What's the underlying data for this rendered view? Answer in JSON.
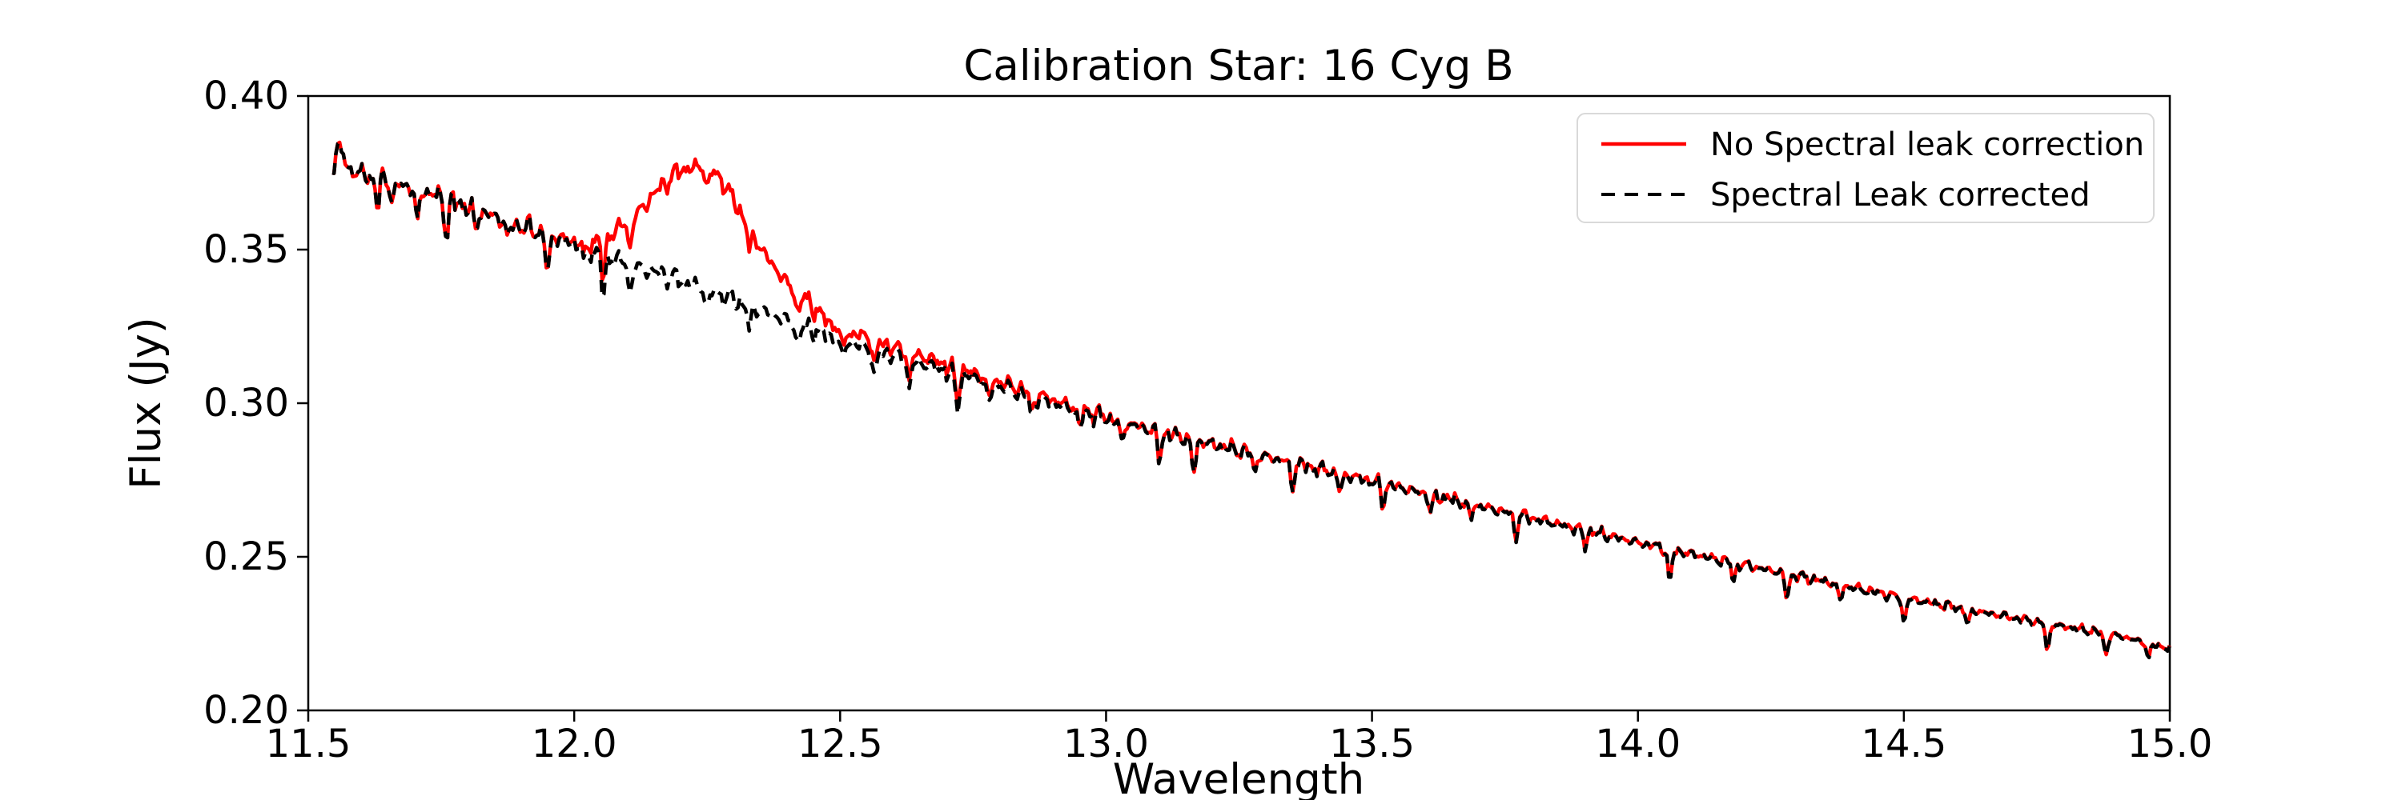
{
  "figure": {
    "title": "Calibration Star: 16 Cyg B",
    "background": "#ffffff"
  },
  "chart_data": {
    "type": "line",
    "title": "Calibration Star: 16 Cyg B",
    "xlabel": "Wavelength",
    "ylabel": "Flux (Jy)",
    "xlim": [
      11.5,
      15.0
    ],
    "ylim": [
      0.2,
      0.4
    ],
    "xticks": [
      "11.5",
      "12.0",
      "12.5",
      "13.0",
      "13.5",
      "14.0",
      "14.5",
      "15.0"
    ],
    "yticks": [
      "0.20",
      "0.25",
      "0.30",
      "0.35",
      "0.40"
    ],
    "grid": false,
    "legend_position": "upper right",
    "axis_color": "#000000",
    "legend_border_color": "#d9d9d9",
    "series": [
      {
        "name": "No Spectral leak correction",
        "color": "#ff0000",
        "style": "solid",
        "x": [
          11.545,
          11.557,
          11.575,
          11.62,
          11.7,
          11.8,
          11.9,
          12.0,
          12.04,
          12.08,
          12.12,
          12.16,
          12.2,
          12.24,
          12.27,
          12.3,
          12.33,
          12.36,
          12.4,
          12.44,
          12.48,
          12.52,
          12.56,
          12.6,
          12.65,
          12.7,
          12.8,
          12.9,
          13.0,
          13.1,
          13.2,
          13.3,
          13.4,
          13.5,
          13.6,
          13.7,
          13.8,
          13.9,
          14.0,
          14.1,
          14.2,
          14.3,
          14.4,
          14.5,
          14.6,
          14.7,
          14.8,
          14.9,
          15.0
        ],
        "y": [
          0.3765,
          0.3845,
          0.376,
          0.3735,
          0.37,
          0.364,
          0.3575,
          0.3525,
          0.353,
          0.3565,
          0.362,
          0.37,
          0.376,
          0.377,
          0.3745,
          0.366,
          0.357,
          0.348,
          0.339,
          0.333,
          0.326,
          0.3225,
          0.3215,
          0.318,
          0.3155,
          0.3125,
          0.307,
          0.301,
          0.2955,
          0.2907,
          0.2867,
          0.2827,
          0.2787,
          0.2747,
          0.2707,
          0.2667,
          0.2627,
          0.2587,
          0.2547,
          0.251,
          0.2474,
          0.2438,
          0.2402,
          0.2367,
          0.2335,
          0.2304,
          0.2274,
          0.2245,
          0.2202
        ]
      },
      {
        "name": "Spectral Leak corrected",
        "color": "#000000",
        "style": "dashed",
        "x": [
          11.545,
          11.557,
          11.575,
          11.62,
          11.7,
          11.8,
          11.9,
          12.0,
          12.1,
          12.2,
          12.3,
          12.4,
          12.5,
          12.6,
          12.7,
          12.8,
          12.9,
          13.0,
          13.1,
          13.2,
          13.3,
          13.4,
          13.5,
          13.6,
          13.7,
          13.8,
          13.9,
          14.0,
          14.1,
          14.2,
          14.3,
          14.4,
          14.5,
          14.6,
          14.7,
          14.8,
          14.9,
          15.0
        ],
        "y": [
          0.3765,
          0.3845,
          0.376,
          0.3735,
          0.37,
          0.364,
          0.3575,
          0.352,
          0.3455,
          0.34,
          0.3335,
          0.327,
          0.3205,
          0.3155,
          0.3105,
          0.3055,
          0.3,
          0.295,
          0.2905,
          0.2865,
          0.2825,
          0.2785,
          0.2745,
          0.2705,
          0.2665,
          0.2625,
          0.2585,
          0.2545,
          0.2508,
          0.2472,
          0.2436,
          0.24,
          0.2365,
          0.2333,
          0.2302,
          0.2272,
          0.2243,
          0.22
        ]
      }
    ],
    "noise": {
      "amplitude_at_11_5": 0.004,
      "amplitude_at_15_0": 0.0012
    },
    "absorption_features": [
      {
        "w": 11.63,
        "depth": 0.009
      },
      {
        "w": 11.66,
        "depth": 0.006
      },
      {
        "w": 11.705,
        "depth": 0.011
      },
      {
        "w": 11.76,
        "depth": 0.012
      },
      {
        "w": 11.815,
        "depth": 0.007
      },
      {
        "w": 11.875,
        "depth": 0.006
      },
      {
        "w": 11.95,
        "depth": 0.013
      },
      {
        "w": 12.02,
        "depth": 0.006
      },
      {
        "w": 12.055,
        "depth": 0.015
      },
      {
        "w": 12.105,
        "depth": 0.01
      },
      {
        "w": 12.25,
        "depth": 0.006
      },
      {
        "w": 12.33,
        "depth": 0.008
      },
      {
        "w": 12.42,
        "depth": 0.007
      },
      {
        "w": 12.505,
        "depth": 0.006
      },
      {
        "w": 12.565,
        "depth": 0.01
      },
      {
        "w": 12.63,
        "depth": 0.009
      },
      {
        "w": 12.72,
        "depth": 0.012
      },
      {
        "w": 12.78,
        "depth": 0.007
      },
      {
        "w": 12.86,
        "depth": 0.007
      },
      {
        "w": 12.95,
        "depth": 0.006
      },
      {
        "w": 13.03,
        "depth": 0.007
      },
      {
        "w": 13.1,
        "depth": 0.009
      },
      {
        "w": 13.165,
        "depth": 0.011
      },
      {
        "w": 13.28,
        "depth": 0.006
      },
      {
        "w": 13.35,
        "depth": 0.008
      },
      {
        "w": 13.44,
        "depth": 0.006
      },
      {
        "w": 13.52,
        "depth": 0.007
      },
      {
        "w": 13.61,
        "depth": 0.006
      },
      {
        "w": 13.685,
        "depth": 0.005
      },
      {
        "w": 13.77,
        "depth": 0.007
      },
      {
        "w": 13.9,
        "depth": 0.005
      },
      {
        "w": 14.06,
        "depth": 0.011
      },
      {
        "w": 14.18,
        "depth": 0.006
      },
      {
        "w": 14.28,
        "depth": 0.008
      },
      {
        "w": 14.38,
        "depth": 0.005
      },
      {
        "w": 14.5,
        "depth": 0.008
      },
      {
        "w": 14.62,
        "depth": 0.005
      },
      {
        "w": 14.77,
        "depth": 0.009
      },
      {
        "w": 14.88,
        "depth": 0.007
      },
      {
        "w": 14.96,
        "depth": 0.005
      }
    ]
  }
}
